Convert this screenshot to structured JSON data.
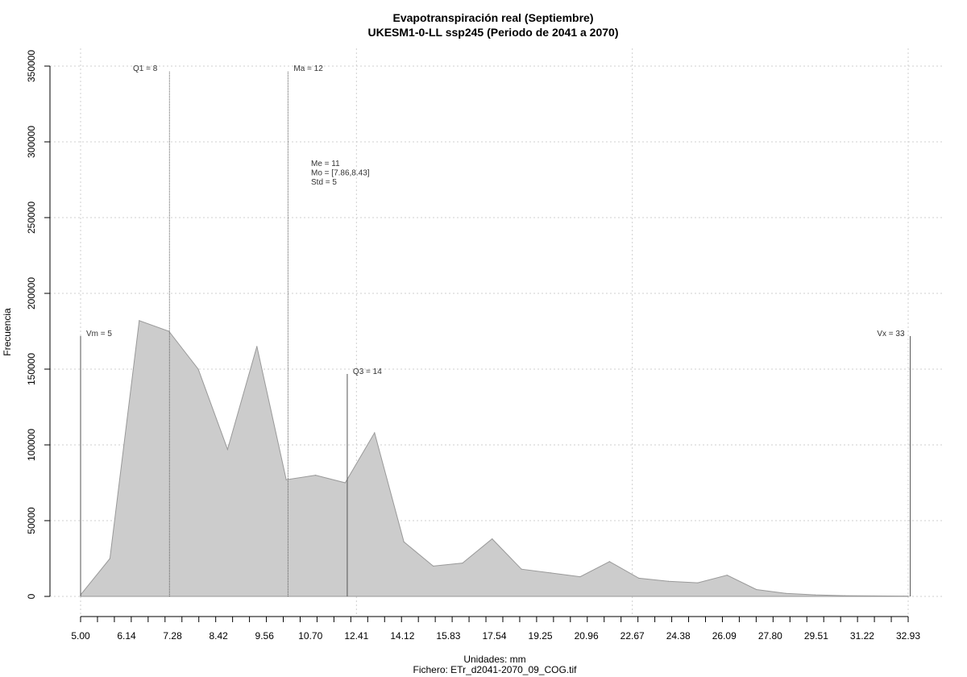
{
  "chart_data": {
    "type": "area",
    "title": "Evapotranspiración real (Septiembre)",
    "subtitle": "UKESM1-0-LL ssp245 (Periodo de 2041 a 2070)",
    "xlabel": "Unidades: mm",
    "ylabel": "Frecuencia",
    "caption": "Fichero: ETr_d2041-2070_09_COG.tif",
    "xlim": [
      5.0,
      32.93
    ],
    "ylim": [
      0,
      350000
    ],
    "grid": true,
    "fill_color": "#cccccc",
    "line_color": "#999999",
    "x_tick_labels": [
      "5.00",
      "6.14",
      "7.28",
      "8.42",
      "9.56",
      "10.70",
      "12.41",
      "14.12",
      "15.83",
      "17.54",
      "19.25",
      "20.96",
      "22.67",
      "24.38",
      "26.09",
      "27.80",
      "29.51",
      "31.22",
      "32.93"
    ],
    "y_ticks": [
      0,
      50000,
      100000,
      150000,
      200000,
      250000,
      300000,
      350000
    ],
    "x": [
      5.0,
      5.99,
      6.98,
      7.98,
      8.97,
      9.96,
      10.95,
      11.94,
      12.93,
      13.93,
      14.92,
      15.91,
      16.9,
      17.89,
      18.89,
      19.88,
      20.87,
      21.86,
      22.85,
      23.84,
      24.84,
      25.83,
      26.82,
      27.81,
      28.8,
      29.79,
      30.79,
      31.78,
      32.77,
      32.93
    ],
    "y": [
      1000,
      25000,
      182000,
      175000,
      150000,
      97000,
      165000,
      77000,
      80000,
      75000,
      108000,
      36000,
      20000,
      22000,
      38000,
      18000,
      15500,
      13000,
      23000,
      12000,
      10000,
      9000,
      14000,
      4500,
      2000,
      1000,
      500,
      300,
      200,
      200
    ],
    "vlines": [
      {
        "x": 5.0,
        "label": "Vm = 5",
        "top": 175000,
        "style": "solid"
      },
      {
        "x": 8.0,
        "label": "Q1 = 8",
        "top": 350000,
        "style": "dashed"
      },
      {
        "x": 12.0,
        "label": "Ma = 12",
        "top": 350000,
        "style": "dashed"
      },
      {
        "x": 14.0,
        "label": "Q3 = 14",
        "top": 150000,
        "style": "solid"
      },
      {
        "x": 33.0,
        "label": "Vx = 33",
        "top": 175000,
        "style": "solid"
      }
    ],
    "stats_lines": [
      "Me = 11",
      "Mo = [7.86,8.43]",
      "Std = 5"
    ]
  }
}
